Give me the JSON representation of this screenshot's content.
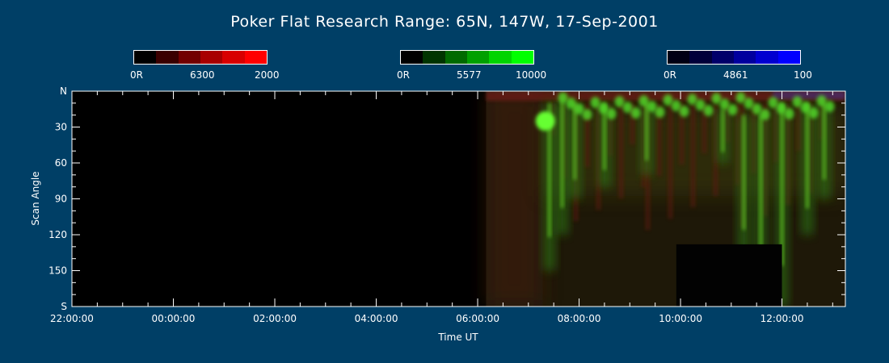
{
  "title": "Poker Flat Research Range: 65N, 147W, 17-Sep-2001",
  "colorbars": [
    {
      "label_min": "0R",
      "label_mid": "6300",
      "label_max": "2000",
      "colors": [
        "#000000",
        "#3a0000",
        "#720000",
        "#a80000",
        "#d80000",
        "#ff0000"
      ]
    },
    {
      "label_min": "0R",
      "label_mid": "5577",
      "label_max": "10000",
      "colors": [
        "#000000",
        "#003400",
        "#006a00",
        "#00a000",
        "#00d400",
        "#00ff00"
      ]
    },
    {
      "label_min": "0R",
      "label_mid": "4861",
      "label_max": "100",
      "colors": [
        "#000014",
        "#00003a",
        "#00006a",
        "#00009e",
        "#0000d0",
        "#0000ff"
      ]
    }
  ],
  "chart_data": {
    "type": "heatmap",
    "title": "Poker Flat Research Range: 65N, 147W, 17-Sep-2001",
    "xlabel": "Time UT",
    "ylabel": "Scan Angle",
    "x_tick_labels": [
      "22:00:00",
      "00:00:00",
      "02:00:00",
      "04:00:00",
      "06:00:00",
      "08:00:00",
      "10:00:00",
      "12:00:00"
    ],
    "y_tick_labels": [
      "N",
      "30",
      "60",
      "90",
      "120",
      "150",
      "S"
    ],
    "x_range_hours_since_2200": [
      0,
      15.25
    ],
    "y_range_deg": [
      0,
      180
    ],
    "channels": [
      {
        "wavelength": "6300",
        "range": [
          "0R",
          "2000"
        ],
        "color": "#ff0000"
      },
      {
        "wavelength": "5577",
        "range": [
          "0R",
          "10000"
        ],
        "color": "#00ff00"
      },
      {
        "wavelength": "4861",
        "range": [
          "0R",
          "100"
        ],
        "color": "#0000ff"
      }
    ],
    "data_start": "06:10:00",
    "data_end": "13:15:00",
    "aurora_green_streaks": [
      {
        "time": "07:25",
        "angle_from": 10,
        "angle_to": 150
      },
      {
        "time": "07:40",
        "angle_from": 8,
        "angle_to": 120
      },
      {
        "time": "07:55",
        "angle_from": 10,
        "angle_to": 90
      },
      {
        "time": "08:30",
        "angle_from": 10,
        "angle_to": 80
      },
      {
        "time": "09:20",
        "angle_from": 10,
        "angle_to": 70
      },
      {
        "time": "10:50",
        "angle_from": 15,
        "angle_to": 60
      },
      {
        "time": "11:15",
        "angle_from": 20,
        "angle_to": 140
      },
      {
        "time": "11:35",
        "angle_from": 20,
        "angle_to": 170
      },
      {
        "time": "12:00",
        "angle_from": 10,
        "angle_to": 180
      },
      {
        "time": "12:30",
        "angle_from": 10,
        "angle_to": 120
      },
      {
        "time": "12:50",
        "angle_from": 10,
        "angle_to": 90
      }
    ]
  }
}
